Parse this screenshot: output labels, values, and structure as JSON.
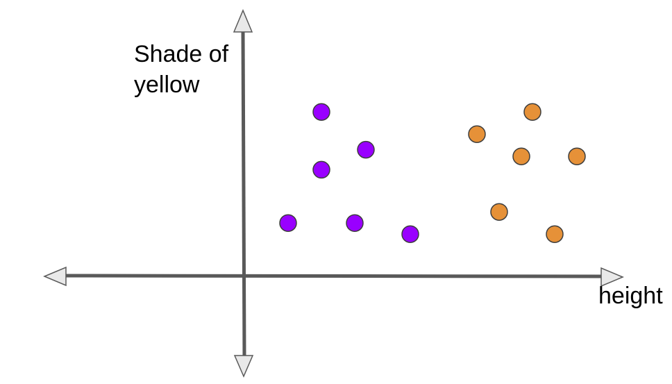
{
  "colors": {
    "axis": "#595959",
    "arrowhead_fill": "#e9e9e9",
    "point_outline": "#3d3d3d",
    "purple_group": "#9900ff",
    "orange_group": "#e69138"
  },
  "chart_data": {
    "type": "scatter",
    "xlabel": "height",
    "ylabel_lines": [
      "Shade of",
      "yellow"
    ],
    "axes": "both axes drawn as double-headed arrows, no ticks, no numeric labels",
    "x_range": [
      -1.0,
      1.85
    ],
    "y_range": [
      -0.5,
      1.25
    ],
    "grid": false,
    "legend": "none",
    "series": [
      {
        "color": "#9900ff",
        "points": [
          {
            "x": 0.35,
            "y": 0.74
          },
          {
            "x": 0.55,
            "y": 0.57
          },
          {
            "x": 0.35,
            "y": 0.48
          },
          {
            "x": 0.2,
            "y": 0.24
          },
          {
            "x": 0.5,
            "y": 0.24
          },
          {
            "x": 0.75,
            "y": 0.19
          }
        ]
      },
      {
        "color": "#e69138",
        "points": [
          {
            "x": 1.3,
            "y": 0.74
          },
          {
            "x": 1.05,
            "y": 0.64
          },
          {
            "x": 1.25,
            "y": 0.54
          },
          {
            "x": 1.5,
            "y": 0.54
          },
          {
            "x": 1.15,
            "y": 0.29
          },
          {
            "x": 1.4,
            "y": 0.19
          }
        ]
      }
    ]
  }
}
